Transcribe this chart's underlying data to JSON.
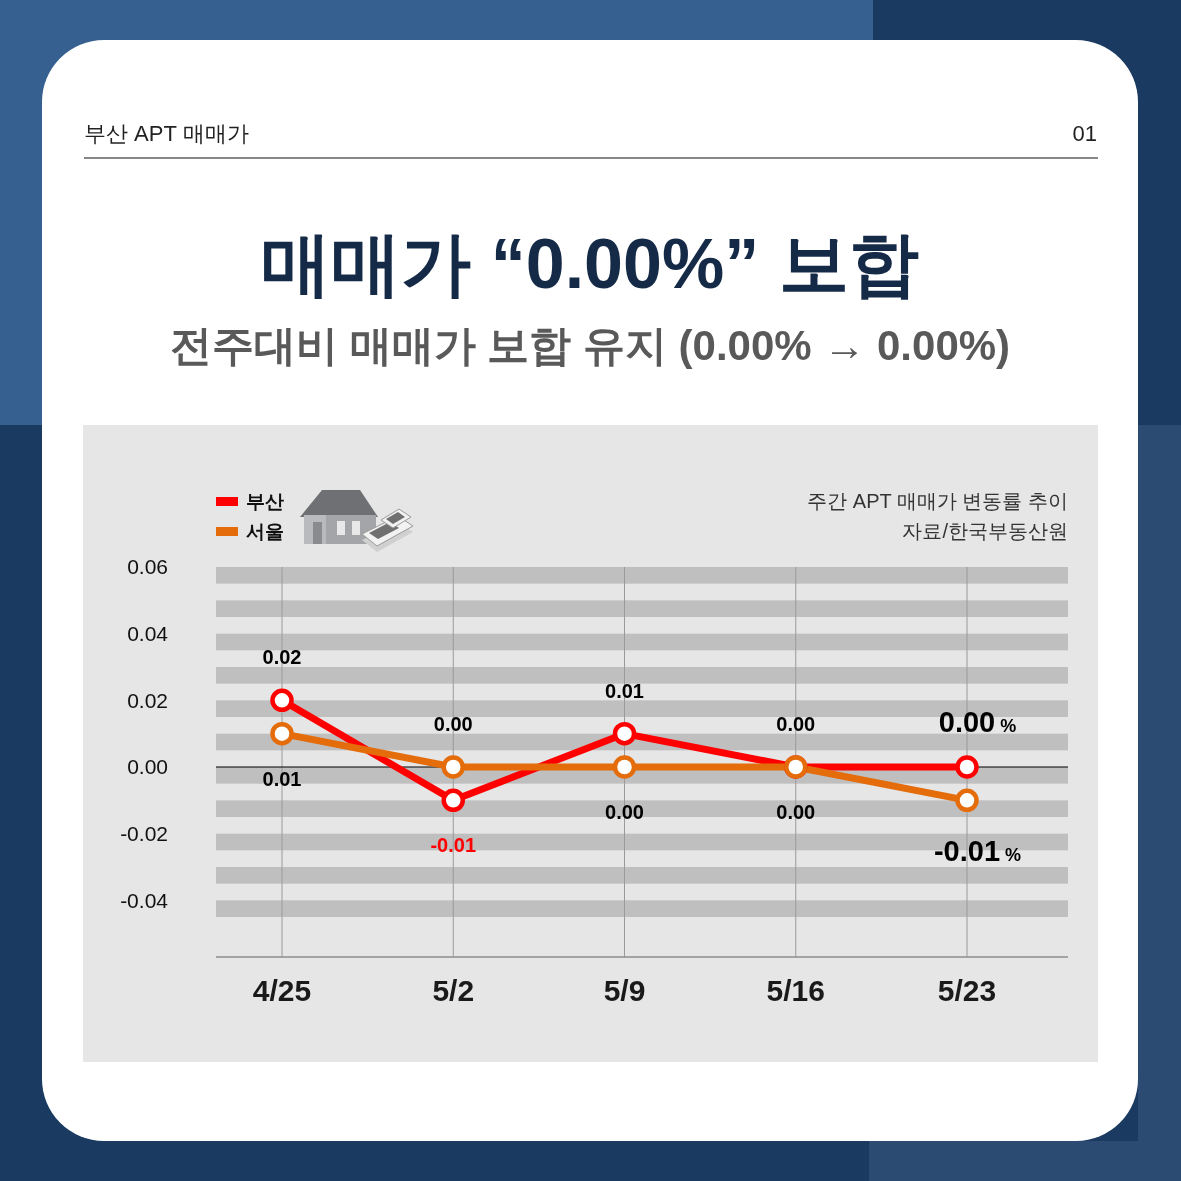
{
  "chart_data": {
    "type": "line",
    "title": "매매가 “0.00%” 보합",
    "subtitle": "전주대비 매매가 보합 유지 (0.00% → 0.00%)",
    "annotations": [
      "부산 APT 매매가",
      "01",
      "주간 APT 매매가 변동률 추이",
      "자료/한국부동산원"
    ],
    "categories": [
      "4/25",
      "5/2",
      "5/9",
      "5/16",
      "5/23"
    ],
    "series": [
      {
        "name": "부산",
        "color": "#ff0000",
        "values": [
          0.02,
          -0.01,
          0.01,
          0,
          0
        ],
        "value_labels": [
          "0.02",
          "-0.01",
          "0.01",
          "0.00",
          "0.00 %"
        ]
      },
      {
        "name": "서울",
        "color": "#e46c0a",
        "values": [
          0.01,
          0,
          0,
          0,
          -0.01
        ],
        "value_labels": [
          "0.01",
          "0.00",
          "0.00",
          "0.00",
          "-0.01 %"
        ]
      }
    ],
    "ylim": [
      -0.057,
      0.06
    ],
    "yticks": [
      0.06,
      0.04,
      0.02,
      {
        "value": 0,
        "label": "0.00"
      },
      -0.02,
      -0.04
    ],
    "grid": "x",
    "legend": "top left",
    "marker": "circle",
    "line_style": "solid",
    "ref_lines": [
      {
        "axis": "y",
        "value": 0,
        "color": "#000000"
      }
    ],
    "bands": [
      {
        "axis": "y",
        "from": 0.055,
        "to": 0.06,
        "color": "#bfbfbf"
      },
      {
        "axis": "y",
        "from": 0.045,
        "to": 0.05,
        "color": "#bfbfbf"
      },
      {
        "axis": "y",
        "from": 0.035,
        "to": 0.04,
        "color": "#bfbfbf"
      },
      {
        "axis": "y",
        "from": 0.025,
        "to": 0.03,
        "color": "#bfbfbf"
      },
      {
        "axis": "y",
        "from": 0.015,
        "to": 0.02,
        "color": "#bfbfbf"
      },
      {
        "axis": "y",
        "from": 0.005,
        "to": 0.01,
        "color": "#bfbfbf"
      },
      {
        "axis": "y",
        "from": -0.005,
        "to": 0,
        "color": "#bfbfbf"
      },
      {
        "axis": "y",
        "from": -0.015,
        "to": -0.01,
        "color": "#bfbfbf"
      },
      {
        "axis": "y",
        "from": -0.025,
        "to": -0.02,
        "color": "#bfbfbf"
      },
      {
        "axis": "y",
        "from": -0.035,
        "to": -0.03,
        "color": "#bfbfbf"
      },
      {
        "axis": "y",
        "from": -0.045,
        "to": -0.04,
        "color": "#bfbfbf"
      }
    ]
  }
}
